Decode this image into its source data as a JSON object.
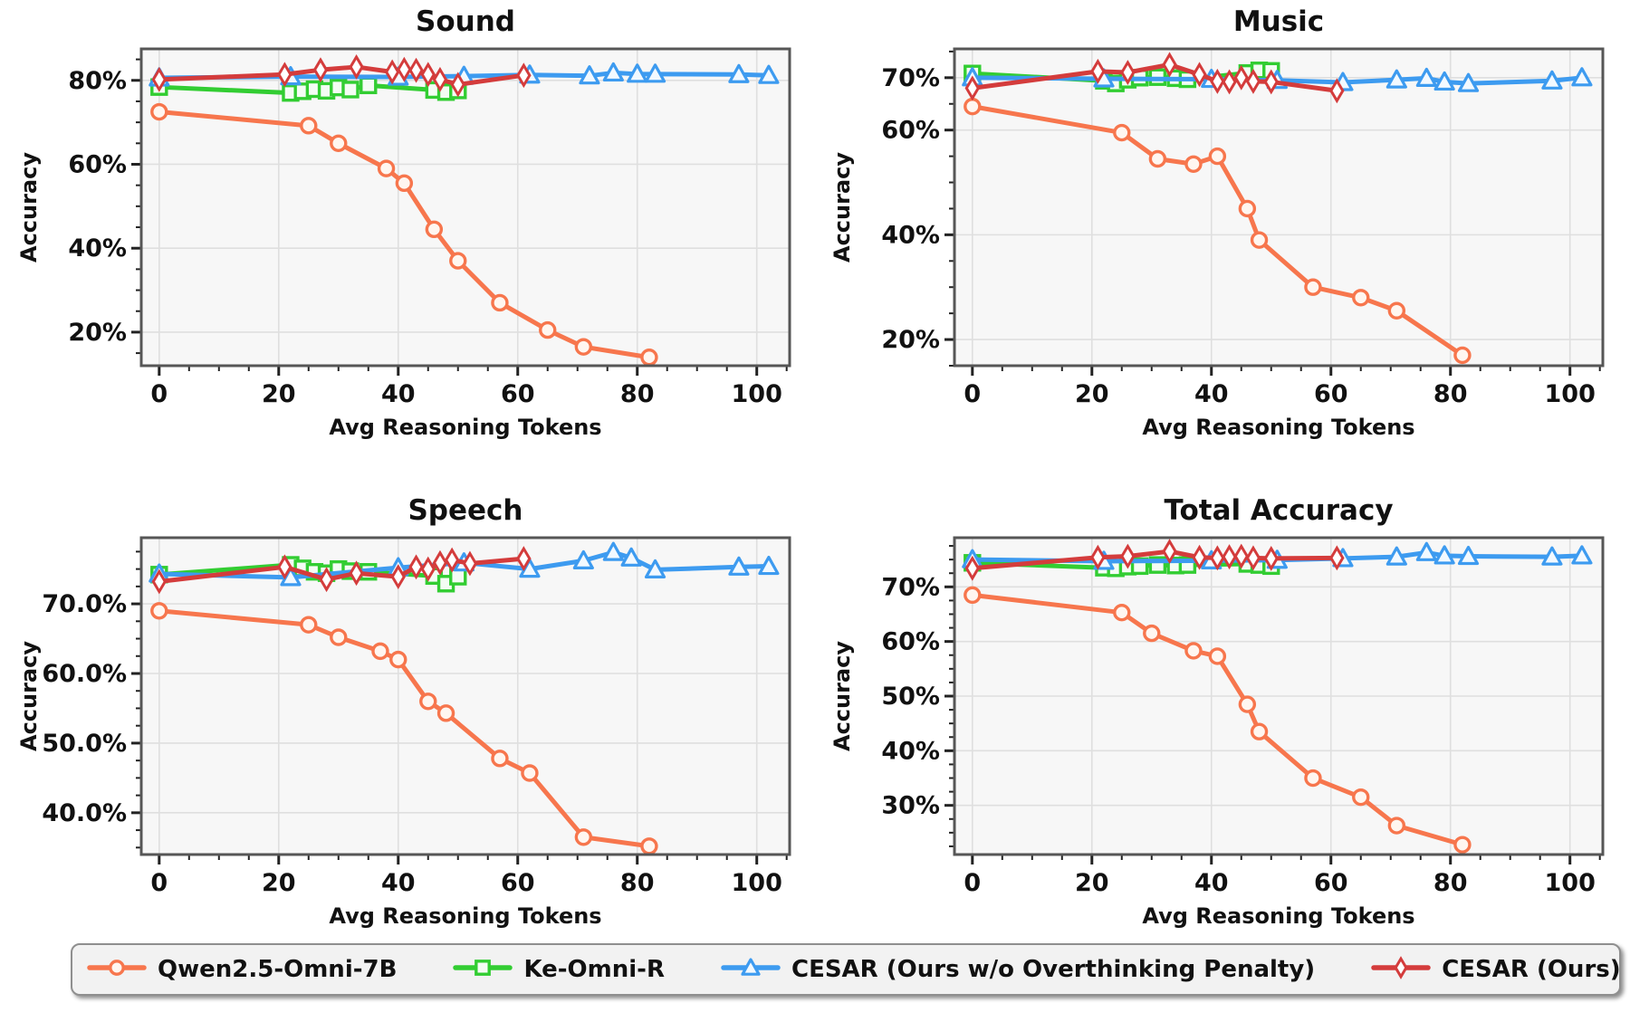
{
  "figure": {
    "background": "#ffffff",
    "plot_background": "#f7f7f7",
    "grid_color": "#dfdfdf",
    "spine_color": "#565656",
    "tick_color": "#222222",
    "text_color": "#111111"
  },
  "colors": {
    "qwen": "#f7764d",
    "ke": "#32cd32",
    "cesar_wo": "#3d9bf0",
    "cesar": "#d43c3c"
  },
  "legend": {
    "items": [
      {
        "label": "Qwen2.5-Omni-7B",
        "series": "qwen",
        "marker": "circle"
      },
      {
        "label": "Ke-Omni-R",
        "series": "ke",
        "marker": "square"
      },
      {
        "label": "CESAR (Ours w/o Overthinking Penalty)",
        "series": "cesar_wo",
        "marker": "triangle"
      },
      {
        "label": "CESAR (Ours)",
        "series": "cesar",
        "marker": "diamond"
      }
    ]
  },
  "chart_data": [
    {
      "type": "line",
      "title": "Sound",
      "xlabel": "Avg Reasoning Tokens",
      "ylabel": "Accuracy",
      "xlim": [
        -3,
        105.5
      ],
      "ylim": [
        12,
        87.5
      ],
      "xticks": [
        0,
        20,
        40,
        60,
        80,
        100
      ],
      "yticks": [
        20,
        40,
        60,
        80
      ],
      "x_minor_step": 5,
      "y_minor_step": 5,
      "ytick_decimals": 0,
      "grid": true,
      "series": [
        {
          "key": "qwen",
          "name": "Qwen2.5-Omni-7B",
          "marker": "circle",
          "x": [
            0,
            25,
            30,
            38,
            41,
            46,
            50,
            57,
            65,
            71,
            82
          ],
          "y": [
            72.5,
            69.2,
            65.0,
            59.0,
            55.5,
            44.5,
            37.0,
            27.0,
            20.5,
            16.5,
            14.0
          ]
        },
        {
          "key": "ke",
          "name": "Ke-Omni-R",
          "marker": "square",
          "x": [
            0,
            22,
            24,
            26,
            28,
            30,
            32,
            35,
            46,
            48,
            50
          ],
          "y": [
            78.4,
            77.0,
            77.4,
            77.9,
            77.5,
            78.3,
            77.8,
            78.8,
            77.7,
            77.2,
            77.6
          ]
        },
        {
          "key": "cesar_wo",
          "name": "CESAR (Ours w/o Overthinking Penalty)",
          "marker": "triangle",
          "x": [
            0,
            22,
            40,
            51,
            62,
            72,
            76,
            80,
            83,
            97,
            102
          ],
          "y": [
            80.6,
            80.9,
            80.8,
            81.0,
            81.3,
            81.1,
            81.8,
            81.5,
            81.5,
            81.4,
            81.2
          ]
        },
        {
          "key": "cesar",
          "name": "CESAR (Ours)",
          "marker": "diamond",
          "x": [
            0,
            21,
            27,
            33,
            39,
            41,
            43,
            45,
            47,
            50,
            61
          ],
          "y": [
            80.2,
            81.4,
            82.5,
            83.2,
            82.0,
            82.6,
            82.4,
            81.4,
            80.2,
            79.0,
            81.2
          ]
        }
      ]
    },
    {
      "type": "line",
      "title": "Music",
      "xlabel": "Avg Reasoning Tokens",
      "ylabel": "Accuracy",
      "xlim": [
        -3,
        105.5
      ],
      "ylim": [
        15,
        75.5
      ],
      "xticks": [
        0,
        20,
        40,
        60,
        80,
        100
      ],
      "yticks": [
        20,
        40,
        60,
        70
      ],
      "x_minor_step": 5,
      "y_minor_step": 5,
      "ytick_decimals": 0,
      "grid": true,
      "series": [
        {
          "key": "qwen",
          "name": "Qwen2.5-Omni-7B",
          "marker": "circle",
          "x": [
            0,
            25,
            31,
            37,
            41,
            46,
            48,
            57,
            65,
            71,
            82
          ],
          "y": [
            64.5,
            59.5,
            54.5,
            53.5,
            55.0,
            45.0,
            39.0,
            30.0,
            28.0,
            25.5,
            17.0
          ]
        },
        {
          "key": "ke",
          "name": "Ke-Omni-R",
          "marker": "square",
          "x": [
            0,
            22,
            24,
            26,
            28,
            31,
            34,
            36,
            46,
            48,
            50
          ],
          "y": [
            70.8,
            69.4,
            68.9,
            69.6,
            70.0,
            70.1,
            69.9,
            69.7,
            70.9,
            71.4,
            71.3
          ]
        },
        {
          "key": "cesar_wo",
          "name": "CESAR (Ours w/o Overthinking Penalty)",
          "marker": "triangle",
          "x": [
            0,
            22,
            40,
            51,
            62,
            71,
            76,
            79,
            83,
            97,
            102
          ],
          "y": [
            70.0,
            69.8,
            69.7,
            69.5,
            69.1,
            69.6,
            69.9,
            69.2,
            68.9,
            69.4,
            70.0
          ]
        },
        {
          "key": "cesar",
          "name": "CESAR (Ours)",
          "marker": "diamond",
          "x": [
            0,
            21,
            26,
            33,
            38,
            41,
            43,
            45,
            47,
            50,
            61
          ],
          "y": [
            68.0,
            71.2,
            71.0,
            72.5,
            70.6,
            69.3,
            69.2,
            70.0,
            69.3,
            69.2,
            67.5
          ]
        }
      ]
    },
    {
      "type": "line",
      "title": "Speech",
      "xlabel": "Avg Reasoning Tokens",
      "ylabel": "Accuracy",
      "xlim": [
        -3,
        105.5
      ],
      "ylim": [
        34,
        79.5
      ],
      "xticks": [
        0,
        20,
        40,
        60,
        80,
        100
      ],
      "yticks": [
        40,
        50,
        60,
        70
      ],
      "x_minor_step": 5,
      "y_minor_step": 2.5,
      "ytick_decimals": 1,
      "grid": true,
      "series": [
        {
          "key": "qwen",
          "name": "Qwen2.5-Omni-7B",
          "marker": "circle",
          "x": [
            0,
            25,
            30,
            37,
            40,
            45,
            48,
            57,
            62,
            71,
            82
          ],
          "y": [
            69.0,
            67.0,
            65.2,
            63.2,
            62.0,
            56.0,
            54.3,
            47.8,
            45.7,
            36.5,
            35.2
          ]
        },
        {
          "key": "ke",
          "name": "Ke-Omni-R",
          "marker": "square",
          "x": [
            0,
            22,
            24,
            26,
            28,
            30,
            32,
            35,
            46,
            48,
            50
          ],
          "y": [
            74.2,
            75.6,
            75.1,
            74.6,
            74.4,
            75.0,
            74.7,
            74.6,
            74.0,
            72.9,
            73.9
          ]
        },
        {
          "key": "cesar_wo",
          "name": "CESAR (Ours w/o Overthinking Penalty)",
          "marker": "triangle",
          "x": [
            0,
            22,
            40,
            51,
            62,
            71,
            76,
            79,
            83,
            97,
            102
          ],
          "y": [
            74.3,
            73.8,
            75.2,
            75.9,
            75.0,
            76.2,
            77.4,
            76.6,
            74.9,
            75.3,
            75.4
          ]
        },
        {
          "key": "cesar",
          "name": "CESAR (Ours)",
          "marker": "diamond",
          "x": [
            0,
            21,
            28,
            33,
            40,
            43,
            45,
            47,
            49,
            52,
            61
          ],
          "y": [
            73.2,
            75.3,
            73.5,
            74.4,
            73.9,
            75.3,
            75.0,
            75.9,
            76.3,
            75.8,
            76.5
          ]
        }
      ]
    },
    {
      "type": "line",
      "title": "Total Accuracy",
      "xlabel": "Avg Reasoning Tokens",
      "ylabel": "Accuracy",
      "xlim": [
        -3,
        105.5
      ],
      "ylim": [
        21,
        79
      ],
      "xticks": [
        0,
        20,
        40,
        60,
        80,
        100
      ],
      "yticks": [
        30,
        40,
        50,
        60,
        70
      ],
      "x_minor_step": 5,
      "y_minor_step": 2.5,
      "ytick_decimals": 0,
      "grid": true,
      "series": [
        {
          "key": "qwen",
          "name": "Qwen2.5-Omni-7B",
          "marker": "circle",
          "x": [
            0,
            25,
            30,
            37,
            41,
            46,
            48,
            57,
            65,
            71,
            82
          ],
          "y": [
            68.5,
            65.3,
            61.5,
            58.3,
            57.3,
            48.5,
            43.5,
            35.0,
            31.5,
            26.3,
            22.8
          ]
        },
        {
          "key": "ke",
          "name": "Ke-Omni-R",
          "marker": "square",
          "x": [
            0,
            22,
            24,
            26,
            28,
            31,
            34,
            36,
            46,
            48,
            50
          ],
          "y": [
            74.4,
            73.5,
            73.4,
            73.7,
            73.8,
            74.0,
            73.9,
            74.0,
            74.2,
            74.0,
            73.8
          ]
        },
        {
          "key": "cesar_wo",
          "name": "CESAR (Ours w/o Overthinking Penalty)",
          "marker": "triangle",
          "x": [
            0,
            22,
            40,
            51,
            62,
            71,
            76,
            79,
            83,
            97,
            102
          ],
          "y": [
            75.0,
            74.7,
            74.8,
            74.9,
            75.2,
            75.5,
            76.3,
            75.7,
            75.6,
            75.5,
            75.7
          ]
        },
        {
          "key": "cesar",
          "name": "CESAR (Ours)",
          "marker": "diamond",
          "x": [
            0,
            21,
            26,
            33,
            38,
            41,
            43,
            45,
            47,
            50,
            61
          ],
          "y": [
            73.4,
            75.4,
            75.6,
            76.5,
            75.4,
            75.3,
            75.5,
            75.6,
            75.3,
            75.2,
            75.3
          ]
        }
      ]
    }
  ]
}
